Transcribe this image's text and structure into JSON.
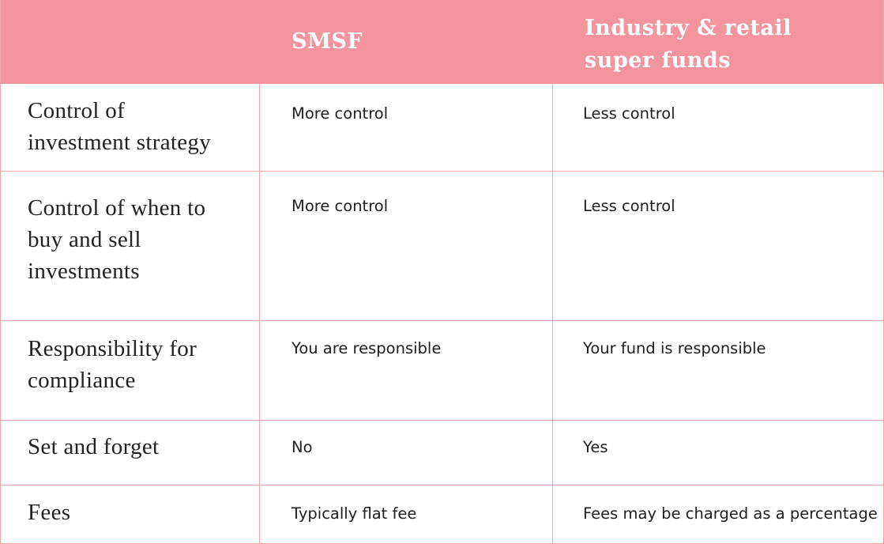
{
  "table": {
    "header": {
      "corner": "",
      "col_smsf": "SMSF",
      "col_other": "Industry & retail\nsuper funds"
    },
    "rows": [
      {
        "label": "Control of\ninvestment strategy",
        "smsf": "More control",
        "other": "Less control"
      },
      {
        "label": "Control of when to\nbuy and sell\ninvestments",
        "smsf": "More control",
        "other": "Less control"
      },
      {
        "label": "Responsibility for\ncompliance",
        "smsf": "You are responsible",
        "other": "Your fund is responsible"
      },
      {
        "label": "Set and forget",
        "smsf": "No",
        "other": "Yes"
      },
      {
        "label": "Fees",
        "smsf": "Typically flat fee",
        "other": "Fees may be charged as a percentage"
      }
    ]
  },
  "colors": {
    "header_bg": "#f4959e",
    "border": "#f3a7ae",
    "header_text": "#ffffff",
    "body_text": "#222222"
  }
}
